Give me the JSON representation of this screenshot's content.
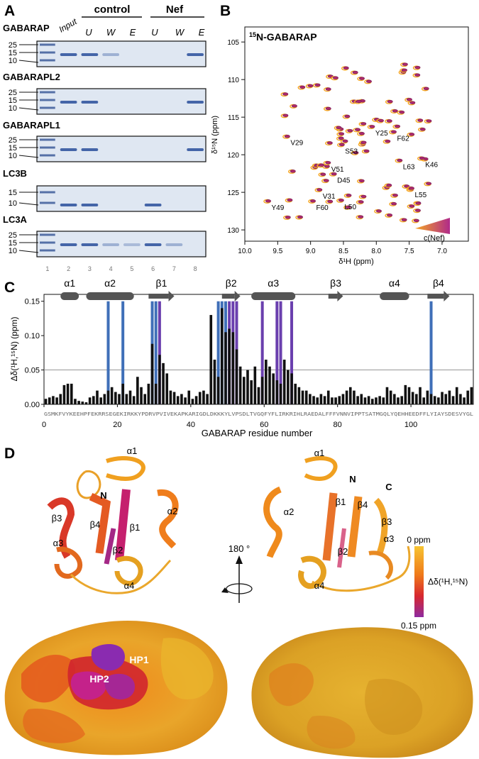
{
  "figure": {
    "panel_a": {
      "letter": "A",
      "group_labels": [
        "control",
        "Nef"
      ],
      "input_label": "Input",
      "lane_col_labels": [
        "U",
        "W",
        "E",
        "U",
        "W",
        "E"
      ],
      "lane_numbers": [
        "1",
        "2",
        "3",
        "4",
        "5",
        "6",
        "7",
        "8"
      ],
      "gels": [
        {
          "name": "GABARAP",
          "mw": [
            "25",
            "15",
            "10"
          ],
          "bands": [
            1,
            1,
            1,
            0.3,
            0,
            0,
            0,
            1
          ]
        },
        {
          "name": "GABARAPL2",
          "mw": [
            "25",
            "15",
            "10"
          ],
          "bands": [
            1,
            1,
            1,
            0,
            0,
            0,
            0,
            1
          ]
        },
        {
          "name": "GABARAPL1",
          "mw": [
            "25",
            "15",
            "10"
          ],
          "bands": [
            1,
            1,
            1,
            0,
            0,
            0,
            0,
            1
          ]
        },
        {
          "name": "LC3B",
          "mw": [
            "15",
            "10"
          ],
          "bands": [
            1,
            1,
            1,
            0,
            0,
            1,
            0,
            0
          ]
        },
        {
          "name": "LC3A",
          "mw": [
            "25",
            "15",
            "10"
          ],
          "bands": [
            1,
            1,
            1,
            0.3,
            0.2,
            1,
            0.3,
            0
          ]
        }
      ]
    },
    "panel_b": {
      "letter": "B",
      "title_sup": "15",
      "title_main": "N-GABARAP",
      "x_tick_labels": [
        "10.0",
        "9.5",
        "9.0",
        "8.5",
        "8.0",
        "7.5",
        "7.0"
      ],
      "y_tick_labels": [
        "105",
        "110",
        "115",
        "120",
        "125",
        "130"
      ],
      "x_axis_label": "δ¹H (ppm)",
      "y_axis_label": "δ¹⁵N (ppm)",
      "gradient_label": "c(Nef)",
      "colors": {
        "low": "#f5a623",
        "high": "#8e2a8a"
      },
      "peak_labels": [
        {
          "label": "Y25",
          "h": 8.08,
          "n": 116.3
        },
        {
          "label": "V29",
          "h": 9.37,
          "n": 117.6
        },
        {
          "label": "F62",
          "h": 7.75,
          "n": 117.0
        },
        {
          "label": "S53",
          "h": 8.54,
          "n": 118.7
        },
        {
          "label": "L63",
          "h": 7.66,
          "n": 120.8
        },
        {
          "label": "K46",
          "h": 7.32,
          "n": 120.5
        },
        {
          "label": "V51",
          "h": 8.75,
          "n": 121.1
        },
        {
          "label": "D45",
          "h": 8.66,
          "n": 122.6
        },
        {
          "label": "V31",
          "h": 8.88,
          "n": 124.7
        },
        {
          "label": "L55",
          "h": 7.48,
          "n": 124.5
        },
        {
          "label": "Y49",
          "h": 9.66,
          "n": 126.2
        },
        {
          "label": "F60",
          "h": 8.98,
          "n": 126.2
        },
        {
          "label": "L50",
          "h": 8.55,
          "n": 126.1
        }
      ]
    },
    "panel_c": {
      "letter": "C",
      "y_tick_labels": [
        "0.00",
        "0.05",
        "0.10",
        "0.15"
      ],
      "x_tick_labels": [
        "0",
        "20",
        "40",
        "60",
        "80",
        "100"
      ],
      "y_axis_label": "Δδ(¹H,¹⁵N) (ppm)",
      "x_axis_label": "GABARAP residue number",
      "sequence": "GSMKFVYKEEHPFEKRRSEGEKIRKKYPDRVPVIVEKAPKARIGDLDKKKYLVPSDLTVGQFYFLIRKRIHLRAEDALFFFVNNVIPPTSATMGQLYQEHHEEDFFLYIAYSDESVYGL",
      "secondary_structure": [
        {
          "label": "α1",
          "type": "helix"
        },
        {
          "label": "α2",
          "type": "helix"
        },
        {
          "label": "β1",
          "type": "strand"
        },
        {
          "label": "β2",
          "type": "strand"
        },
        {
          "label": "α3",
          "type": "helix"
        },
        {
          "label": "β3",
          "type": "strand"
        },
        {
          "label": "α4",
          "type": "helix"
        },
        {
          "label": "β4",
          "type": "strand"
        }
      ]
    },
    "panel_d": {
      "letter": "D",
      "rotation_label": "180 °",
      "scale_top": "0 ppm",
      "scale_bottom": "0.15 ppm",
      "scale_label": "Δδ(¹H,¹⁵N)",
      "left_ss_labels": [
        "α1",
        "N",
        "α2",
        "β1",
        "β4",
        "β3",
        "α3",
        "β2",
        "α4"
      ],
      "right_ss_labels": [
        "α1",
        "N",
        "C",
        "α2",
        "β1",
        "β4",
        "β3",
        "α3",
        "β2",
        "α4"
      ],
      "surface_labels": [
        "HP1",
        "HP2"
      ]
    }
  },
  "chart_data": {
    "type": "bar",
    "xlabel": "GABARAP residue number",
    "ylabel": "Δδ(¹H,¹⁵N) (ppm)",
    "ylim": [
      0,
      0.16
    ],
    "xlim": [
      0,
      117
    ],
    "threshold": 0.05,
    "values": [
      0.008,
      0.01,
      0.012,
      0.01,
      0.015,
      0.028,
      0.03,
      0.03,
      0.008,
      0.005,
      0.004,
      0.003,
      0.01,
      0.012,
      0.02,
      0.01,
      0.015,
      0.02,
      0.025,
      0.018,
      0.015,
      0.03,
      0.015,
      0.02,
      0.012,
      0.04,
      0.025,
      0.015,
      0.03,
      0.088,
      0.03,
      0.072,
      0.06,
      0.045,
      0.02,
      0.018,
      0.012,
      0.015,
      0.01,
      0.02,
      0.008,
      0.012,
      0.018,
      0.02,
      0.015,
      0.13,
      0.065,
      0.04,
      0.14,
      0.105,
      0.11,
      0.105,
      0.08,
      0.055,
      0.04,
      0.05,
      0.035,
      0.055,
      0.025,
      0.04,
      0.065,
      0.055,
      0.045,
      0.035,
      0.03,
      0.065,
      0.05,
      0.045,
      0.03,
      0.025,
      0.02,
      0.02,
      0.015,
      0.012,
      0.01,
      0.015,
      0.012,
      0.02,
      0.01,
      0.01,
      0.012,
      0.015,
      0.02,
      0.025,
      0.02,
      0.012,
      0.015,
      0.01,
      0.012,
      0.008,
      0.01,
      0.012,
      0.01,
      0.025,
      0.02,
      0.015,
      0.01,
      0.012,
      0.028,
      0.025,
      0.018,
      0.015,
      0.025,
      0.01,
      0.02,
      0.015,
      0.012,
      0.01,
      0.018,
      0.015,
      0.02,
      0.012,
      0.025,
      0.015,
      0.01,
      0.02,
      0.025
    ],
    "blue_lines": [
      17,
      21,
      29,
      30,
      47,
      48,
      49,
      105
    ],
    "purple_lines": [
      31,
      50,
      51,
      52,
      59,
      63,
      64,
      67
    ],
    "structure_elements": [
      {
        "label": "α1",
        "type": "helix",
        "start": 4,
        "end": 9
      },
      {
        "label": "α2",
        "type": "helix",
        "start": 11,
        "end": 24
      },
      {
        "label": "β1",
        "type": "strand",
        "start": 28,
        "end": 35
      },
      {
        "label": "β2",
        "type": "strand",
        "start": 48,
        "end": 53
      },
      {
        "label": "α3",
        "type": "helix",
        "start": 56,
        "end": 68
      },
      {
        "label": "β3",
        "type": "strand",
        "start": 77,
        "end": 81
      },
      {
        "label": "α4",
        "type": "helix",
        "start": 91,
        "end": 99
      },
      {
        "label": "β4",
        "type": "strand",
        "start": 104,
        "end": 110
      }
    ]
  }
}
